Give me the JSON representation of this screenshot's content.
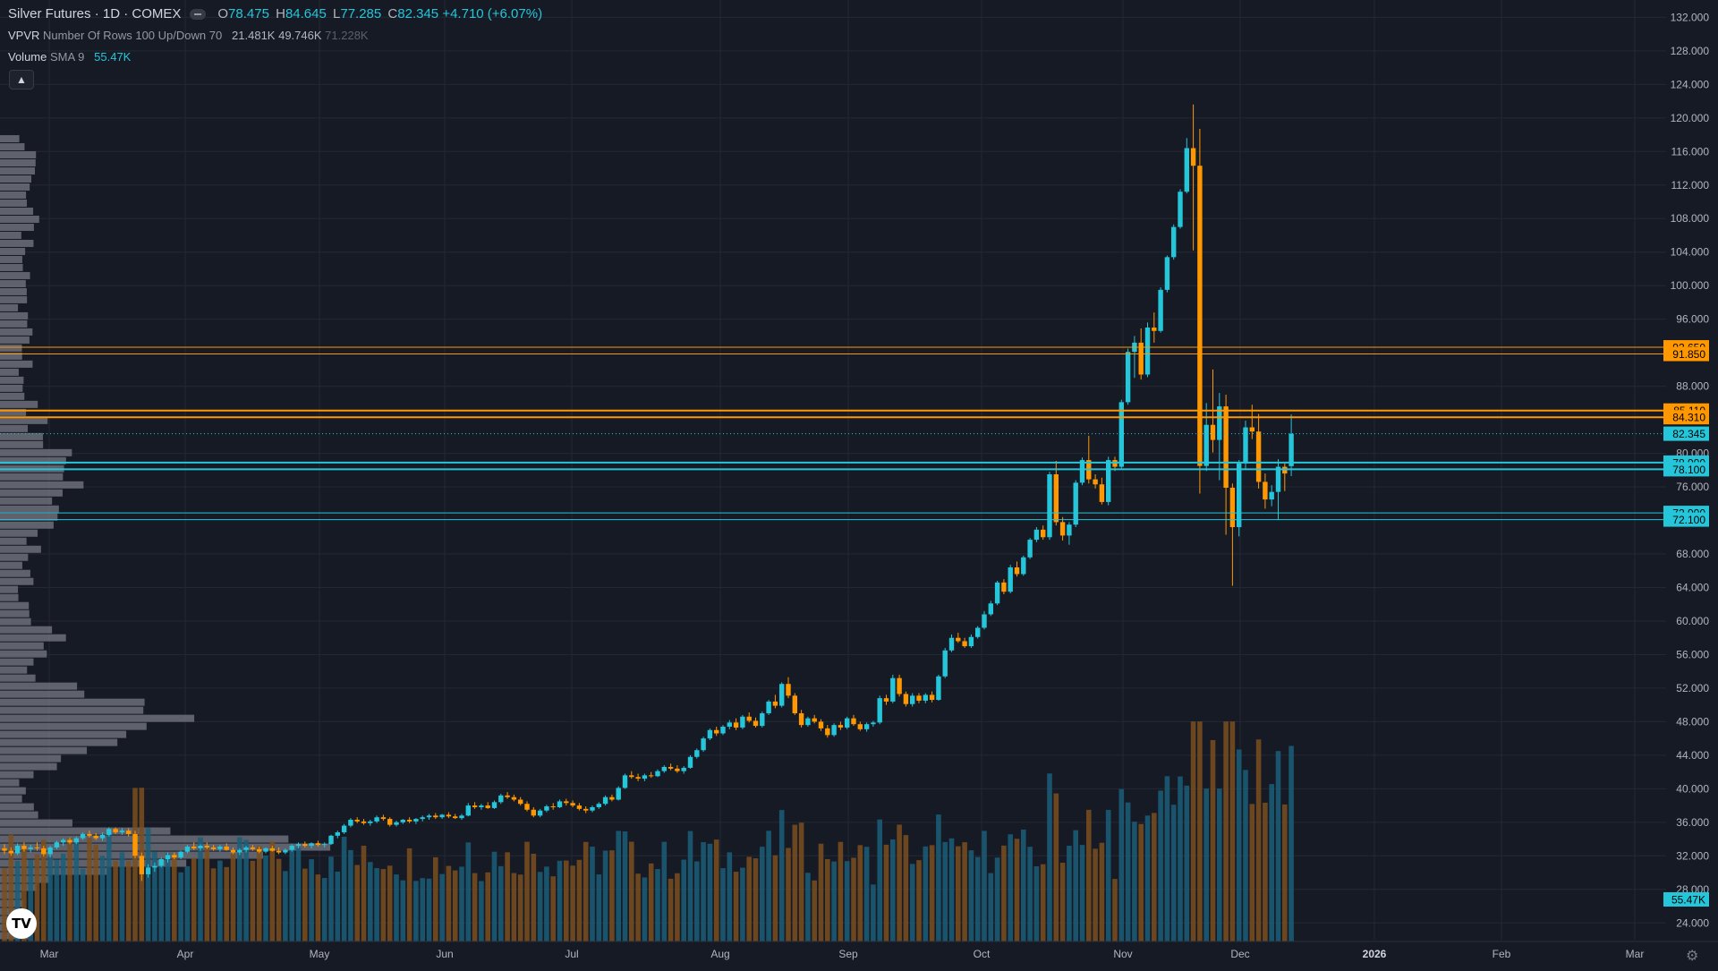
{
  "header": {
    "symbol": "Silver Futures · 1D · COMEX",
    "ohlc": [
      {
        "label": "O",
        "value": "78.475"
      },
      {
        "label": "H",
        "value": "84.645"
      },
      {
        "label": "L",
        "value": "77.285"
      },
      {
        "label": "C",
        "value": "82.345"
      }
    ],
    "change": "+4.710 (+6.07%)"
  },
  "indicators": {
    "vpvr": {
      "name": "VPVR",
      "params": "Number Of Rows 100 Up/Down 70",
      "values": [
        "21.481K",
        "49.746K",
        "71.228K"
      ]
    },
    "volume": {
      "name": "Volume",
      "params": "SMA 9",
      "value": "55.47K"
    }
  },
  "colors": {
    "background": "#161a25",
    "grid": "#242833",
    "up": "#26c6da",
    "down": "#ff9800",
    "vol_up": "#1b5e79",
    "vol_down": "#7a4f1e",
    "profile": "#787b86"
  },
  "icons": {
    "collapse": "chevron-up-icon",
    "logo": "tradingview-logo-icon",
    "settings": "gear-icon"
  },
  "logo_text": "TV",
  "chart_data": {
    "type": "candlestick",
    "ylim": [
      22.0,
      133.0
    ],
    "yticks": [
      "132.000",
      "128.000",
      "124.000",
      "120.000",
      "116.000",
      "112.000",
      "108.000",
      "104.000",
      "100.000",
      "96.000",
      "88.000",
      "80.000",
      "76.000",
      "68.000",
      "64.000",
      "60.000",
      "56.000",
      "52.000",
      "48.000",
      "44.000",
      "40.000",
      "36.000",
      "32.000",
      "28.000",
      "24.000"
    ],
    "xticks": [
      "Mar",
      "Apr",
      "May",
      "Jun",
      "Jul",
      "Aug",
      "Sep",
      "Oct",
      "Nov",
      "Dec",
      "2026",
      "Feb",
      "Mar"
    ],
    "price_lines": [
      {
        "value": 92.65,
        "label": "92.650",
        "color": "#ff9800",
        "width": 1
      },
      {
        "value": 91.85,
        "label": "91.850",
        "color": "#ff9800",
        "width": 1
      },
      {
        "value": 85.11,
        "label": "85.110",
        "color": "#ff9800",
        "width": 2
      },
      {
        "value": 84.31,
        "label": "84.310",
        "color": "#ff9800",
        "width": 2
      },
      {
        "value": 78.9,
        "label": "78.900",
        "color": "#26c6da",
        "width": 2
      },
      {
        "value": 78.1,
        "label": "78.100",
        "color": "#26c6da",
        "width": 2
      },
      {
        "value": 72.9,
        "label": "72.900",
        "color": "#26c6da",
        "width": 1
      },
      {
        "value": 72.1,
        "label": "72.100",
        "color": "#26c6da",
        "width": 1
      }
    ],
    "last_price": {
      "value": 82.345,
      "label": "82.345",
      "color": "#26c6da"
    },
    "volume_sma_label": "55.47K",
    "candles": [
      [
        32.9,
        33.4,
        32.2,
        32.6
      ],
      [
        32.6,
        33.0,
        32.0,
        32.3
      ],
      [
        32.3,
        33.5,
        32.1,
        33.2
      ],
      [
        33.2,
        33.6,
        32.5,
        32.8
      ],
      [
        32.8,
        33.3,
        32.4,
        33.0
      ],
      [
        33.0,
        33.6,
        32.6,
        32.9
      ],
      [
        32.9,
        33.2,
        31.9,
        32.2
      ],
      [
        32.2,
        33.2,
        31.8,
        33.0
      ],
      [
        33.0,
        33.8,
        32.8,
        33.6
      ],
      [
        33.6,
        34.1,
        33.2,
        33.9
      ],
      [
        33.9,
        34.2,
        33.4,
        33.6
      ],
      [
        33.6,
        34.3,
        33.4,
        34.1
      ],
      [
        34.1,
        34.8,
        33.9,
        34.6
      ],
      [
        34.6,
        35.0,
        34.2,
        34.4
      ],
      [
        34.4,
        34.7,
        33.9,
        34.1
      ],
      [
        34.1,
        34.8,
        33.8,
        34.5
      ],
      [
        34.5,
        35.4,
        34.3,
        35.2
      ],
      [
        35.2,
        35.4,
        34.6,
        34.8
      ],
      [
        34.8,
        35.3,
        34.5,
        35.0
      ],
      [
        35.0,
        35.3,
        34.3,
        34.6
      ],
      [
        34.6,
        35.0,
        31.7,
        32.0
      ],
      [
        32.0,
        32.4,
        29.0,
        29.8
      ],
      [
        29.8,
        31.0,
        29.4,
        30.6
      ],
      [
        30.6,
        31.2,
        30.1,
        30.8
      ],
      [
        30.8,
        31.8,
        30.6,
        31.6
      ],
      [
        31.6,
        32.4,
        31.2,
        32.1
      ],
      [
        32.1,
        32.4,
        31.6,
        31.8
      ],
      [
        31.8,
        32.6,
        31.6,
        32.5
      ],
      [
        32.5,
        33.3,
        32.3,
        33.1
      ],
      [
        33.1,
        33.6,
        32.7,
        32.9
      ],
      [
        32.9,
        33.4,
        32.6,
        33.2
      ],
      [
        33.2,
        33.6,
        32.8,
        33.0
      ],
      [
        33.0,
        33.3,
        32.6,
        32.8
      ],
      [
        32.8,
        33.3,
        32.5,
        33.1
      ],
      [
        33.1,
        33.5,
        32.6,
        32.7
      ],
      [
        32.7,
        33.0,
        32.2,
        32.4
      ],
      [
        32.4,
        32.9,
        32.1,
        32.7
      ],
      [
        32.7,
        33.2,
        32.4,
        33.0
      ],
      [
        33.0,
        33.3,
        32.6,
        32.8
      ],
      [
        32.8,
        33.1,
        32.3,
        32.5
      ],
      [
        32.5,
        33.0,
        32.3,
        32.9
      ],
      [
        32.9,
        33.2,
        32.5,
        32.6
      ],
      [
        32.6,
        33.0,
        32.2,
        32.4
      ],
      [
        32.4,
        32.9,
        32.2,
        32.7
      ],
      [
        32.7,
        33.4,
        32.5,
        33.2
      ],
      [
        33.2,
        33.6,
        32.9,
        33.4
      ],
      [
        33.4,
        33.7,
        33.0,
        33.2
      ],
      [
        33.2,
        33.6,
        32.9,
        33.5
      ],
      [
        33.5,
        33.8,
        33.1,
        33.3
      ],
      [
        33.3,
        33.6,
        33.0,
        33.4
      ],
      [
        33.4,
        34.5,
        33.3,
        34.4
      ],
      [
        34.4,
        35.0,
        34.1,
        34.8
      ],
      [
        34.8,
        35.8,
        34.6,
        35.6
      ],
      [
        35.6,
        36.5,
        35.4,
        36.3
      ],
      [
        36.3,
        36.6,
        35.9,
        36.1
      ],
      [
        36.1,
        36.4,
        35.7,
        35.9
      ],
      [
        35.9,
        36.3,
        35.6,
        36.1
      ],
      [
        36.1,
        36.8,
        35.9,
        36.6
      ],
      [
        36.6,
        36.9,
        36.2,
        36.4
      ],
      [
        36.4,
        36.6,
        35.5,
        35.7
      ],
      [
        35.7,
        36.2,
        35.5,
        36.0
      ],
      [
        36.0,
        36.4,
        35.8,
        36.3
      ],
      [
        36.3,
        36.6,
        35.9,
        36.1
      ],
      [
        36.1,
        36.5,
        35.8,
        36.4
      ],
      [
        36.4,
        36.8,
        36.1,
        36.6
      ],
      [
        36.6,
        37.0,
        36.3,
        36.8
      ],
      [
        36.8,
        37.1,
        36.4,
        36.6
      ],
      [
        36.6,
        37.0,
        36.4,
        36.9
      ],
      [
        36.9,
        37.2,
        36.5,
        36.7
      ],
      [
        36.7,
        37.0,
        36.4,
        36.5
      ],
      [
        36.5,
        37.0,
        36.3,
        36.8
      ],
      [
        36.8,
        38.3,
        36.7,
        38.0
      ],
      [
        38.0,
        38.4,
        37.6,
        37.8
      ],
      [
        37.8,
        38.2,
        37.5,
        38.0
      ],
      [
        38.0,
        38.4,
        37.6,
        37.7
      ],
      [
        37.7,
        38.6,
        37.6,
        38.4
      ],
      [
        38.4,
        39.4,
        38.2,
        39.2
      ],
      [
        39.2,
        39.6,
        38.8,
        39.0
      ],
      [
        39.0,
        39.3,
        38.5,
        38.7
      ],
      [
        38.7,
        39.0,
        38.0,
        38.2
      ],
      [
        38.2,
        38.5,
        37.3,
        37.5
      ],
      [
        37.5,
        37.8,
        36.6,
        36.8
      ],
      [
        36.8,
        37.6,
        36.6,
        37.4
      ],
      [
        37.4,
        38.1,
        37.2,
        37.9
      ],
      [
        37.9,
        38.3,
        37.5,
        37.8
      ],
      [
        37.8,
        38.7,
        37.7,
        38.5
      ],
      [
        38.5,
        38.8,
        38.0,
        38.3
      ],
      [
        38.3,
        38.6,
        37.8,
        38.0
      ],
      [
        38.0,
        38.3,
        37.4,
        37.6
      ],
      [
        37.6,
        37.9,
        37.1,
        37.4
      ],
      [
        37.4,
        38.0,
        37.2,
        37.8
      ],
      [
        37.8,
        38.4,
        37.6,
        38.2
      ],
      [
        38.2,
        39.2,
        38.0,
        39.0
      ],
      [
        39.0,
        39.3,
        38.5,
        38.7
      ],
      [
        38.7,
        40.3,
        38.6,
        40.1
      ],
      [
        40.1,
        41.8,
        40.0,
        41.6
      ],
      [
        41.6,
        42.1,
        41.2,
        41.4
      ],
      [
        41.4,
        41.8,
        40.9,
        41.2
      ],
      [
        41.2,
        41.8,
        40.9,
        41.6
      ],
      [
        41.6,
        42.0,
        41.3,
        41.5
      ],
      [
        41.5,
        42.3,
        41.4,
        42.1
      ],
      [
        42.1,
        42.8,
        41.9,
        42.6
      ],
      [
        42.6,
        43.0,
        42.2,
        42.4
      ],
      [
        42.4,
        42.8,
        41.9,
        42.1
      ],
      [
        42.1,
        42.7,
        41.8,
        42.5
      ],
      [
        42.5,
        44.0,
        42.4,
        43.8
      ],
      [
        43.8,
        44.8,
        43.6,
        44.6
      ],
      [
        44.6,
        46.2,
        44.4,
        46.0
      ],
      [
        46.0,
        47.2,
        45.8,
        47.0
      ],
      [
        47.0,
        47.4,
        46.3,
        46.6
      ],
      [
        46.6,
        47.6,
        46.4,
        47.4
      ],
      [
        47.4,
        48.2,
        47.1,
        47.9
      ],
      [
        47.9,
        48.4,
        47.0,
        47.3
      ],
      [
        47.3,
        48.8,
        47.1,
        48.6
      ],
      [
        48.6,
        49.1,
        47.9,
        48.1
      ],
      [
        48.1,
        48.5,
        47.3,
        47.5
      ],
      [
        47.5,
        49.2,
        47.3,
        49.0
      ],
      [
        49.0,
        50.6,
        48.8,
        50.4
      ],
      [
        50.4,
        51.2,
        49.6,
        49.9
      ],
      [
        49.9,
        52.7,
        49.7,
        52.5
      ],
      [
        52.5,
        53.3,
        50.8,
        51.1
      ],
      [
        51.1,
        51.4,
        48.8,
        49.0
      ],
      [
        49.0,
        49.4,
        47.3,
        47.6
      ],
      [
        47.6,
        48.6,
        47.4,
        48.4
      ],
      [
        48.4,
        48.8,
        47.8,
        48.0
      ],
      [
        48.0,
        48.3,
        46.9,
        47.2
      ],
      [
        47.2,
        47.6,
        46.1,
        46.4
      ],
      [
        46.4,
        47.8,
        46.2,
        47.6
      ],
      [
        47.6,
        48.0,
        47.0,
        47.3
      ],
      [
        47.3,
        48.6,
        47.1,
        48.4
      ],
      [
        48.4,
        48.8,
        47.5,
        47.7
      ],
      [
        47.7,
        48.0,
        46.9,
        47.1
      ],
      [
        47.1,
        47.9,
        46.8,
        47.7
      ],
      [
        47.7,
        48.1,
        47.4,
        47.9
      ],
      [
        47.9,
        51.1,
        47.7,
        50.8
      ],
      [
        50.8,
        51.2,
        50.0,
        50.4
      ],
      [
        50.4,
        53.6,
        50.2,
        53.2
      ],
      [
        53.2,
        53.6,
        51.0,
        51.3
      ],
      [
        51.3,
        51.6,
        49.8,
        50.1
      ],
      [
        50.1,
        51.4,
        49.8,
        51.1
      ],
      [
        51.1,
        51.4,
        50.2,
        50.5
      ],
      [
        50.5,
        51.4,
        50.2,
        51.2
      ],
      [
        51.2,
        51.6,
        50.3,
        50.6
      ],
      [
        50.6,
        53.6,
        50.5,
        53.4
      ],
      [
        53.4,
        56.8,
        53.2,
        56.5
      ],
      [
        56.5,
        58.4,
        56.3,
        58.0
      ],
      [
        58.0,
        58.6,
        57.4,
        57.6
      ],
      [
        57.6,
        58.0,
        56.8,
        57.0
      ],
      [
        57.0,
        58.4,
        56.8,
        58.1
      ],
      [
        58.1,
        59.4,
        57.9,
        59.2
      ],
      [
        59.2,
        61.2,
        59.0,
        60.8
      ],
      [
        60.8,
        62.4,
        60.6,
        62.1
      ],
      [
        62.1,
        64.8,
        61.9,
        64.6
      ],
      [
        64.6,
        65.0,
        63.2,
        63.5
      ],
      [
        63.5,
        66.7,
        63.3,
        66.4
      ],
      [
        66.4,
        67.1,
        65.3,
        65.6
      ],
      [
        65.6,
        67.8,
        65.4,
        67.6
      ],
      [
        67.6,
        69.9,
        67.4,
        69.7
      ],
      [
        69.7,
        71.2,
        69.4,
        70.9
      ],
      [
        70.9,
        71.4,
        69.7,
        70.0
      ],
      [
        70.0,
        77.8,
        69.7,
        77.5
      ],
      [
        77.5,
        79.1,
        71.4,
        71.8
      ],
      [
        71.8,
        72.4,
        69.6,
        70.2
      ],
      [
        70.2,
        71.8,
        69.1,
        71.5
      ],
      [
        71.5,
        76.8,
        71.2,
        76.5
      ],
      [
        76.5,
        79.5,
        76.2,
        79.2
      ],
      [
        79.2,
        82.1,
        76.4,
        76.9
      ],
      [
        76.9,
        77.5,
        75.8,
        76.3
      ],
      [
        76.3,
        77.1,
        73.9,
        74.2
      ],
      [
        74.2,
        79.6,
        73.8,
        79.2
      ],
      [
        79.2,
        79.6,
        77.9,
        78.4
      ],
      [
        78.4,
        86.4,
        78.2,
        86.1
      ],
      [
        86.1,
        92.5,
        85.8,
        92.1
      ],
      [
        92.1,
        94.0,
        89.0,
        93.2
      ],
      [
        93.2,
        94.9,
        88.8,
        89.4
      ],
      [
        89.4,
        95.6,
        89.1,
        95.0
      ],
      [
        95.0,
        96.8,
        93.2,
        94.6
      ],
      [
        94.6,
        99.8,
        94.4,
        99.5
      ],
      [
        99.5,
        103.6,
        99.2,
        103.4
      ],
      [
        103.4,
        107.3,
        103.1,
        107.0
      ],
      [
        107.0,
        111.5,
        106.8,
        111.2
      ],
      [
        111.2,
        117.6,
        111.0,
        116.4
      ],
      [
        116.4,
        121.6,
        104.2,
        114.3
      ],
      [
        114.3,
        118.7,
        75.2,
        78.5
      ],
      [
        78.5,
        86.0,
        77.9,
        83.4
      ],
      [
        83.4,
        90.0,
        80.1,
        81.6
      ],
      [
        81.6,
        87.2,
        76.8,
        85.6
      ],
      [
        85.6,
        87.0,
        70.3,
        75.9
      ],
      [
        75.9,
        76.4,
        64.2,
        71.2
      ],
      [
        71.2,
        79.2,
        70.1,
        78.8
      ],
      [
        78.8,
        83.9,
        78.2,
        83.1
      ],
      [
        83.1,
        85.8,
        81.7,
        82.6
      ],
      [
        82.6,
        84.7,
        75.8,
        76.6
      ],
      [
        76.6,
        77.6,
        73.4,
        74.5
      ],
      [
        74.5,
        76.2,
        73.7,
        75.4
      ],
      [
        75.4,
        79.3,
        72.1,
        78.4
      ],
      [
        78.4,
        78.8,
        75.5,
        77.6
      ],
      [
        78.475,
        84.645,
        77.285,
        82.345
      ]
    ],
    "volumes": [],
    "volume_ylim": [
      0,
      120
    ],
    "profile_range": [
      22.0,
      118.0
    ],
    "profile": []
  }
}
